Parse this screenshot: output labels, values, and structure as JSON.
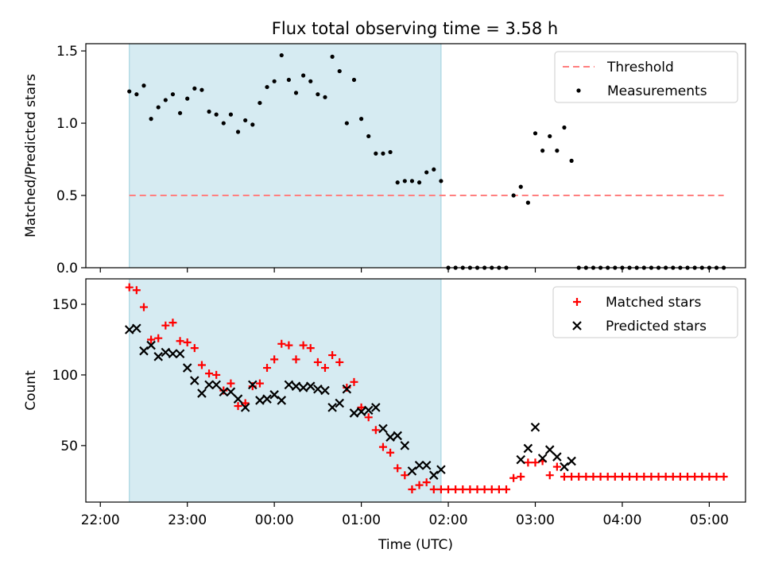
{
  "title": "Flux total observing time = 3.58 h",
  "colors": {
    "shade": "#add8e6",
    "threshold": "#ff7f7f",
    "matched": "#ff0000",
    "predicted": "#000000",
    "measurement": "#000000"
  },
  "chart_data": [
    {
      "type": "scatter",
      "ylabel": "Matched/Predicted stars",
      "xlabel": "",
      "ylim": [
        0,
        1.55
      ],
      "yticks": [
        0,
        0.5,
        1.0,
        1.5
      ],
      "ytick_labels": [
        "0.0",
        "0.5",
        "1.0",
        "1.5"
      ],
      "xlim": [
        "21:50",
        "05:25"
      ],
      "shaded_span": [
        "22:20",
        "01:55"
      ],
      "threshold": {
        "label": "Threshold",
        "value": 0.5,
        "x_range": [
          "22:20",
          "05:10"
        ]
      },
      "legend": {
        "position": "upper right",
        "entries": [
          "Threshold",
          "Measurements"
        ]
      },
      "series": [
        {
          "name": "Measurements",
          "marker": "dot",
          "x": [
            "22:20",
            "22:25",
            "22:30",
            "22:35",
            "22:40",
            "22:45",
            "22:50",
            "22:55",
            "23:00",
            "23:05",
            "23:10",
            "23:15",
            "23:20",
            "23:25",
            "23:30",
            "23:35",
            "23:40",
            "23:45",
            "23:50",
            "23:55",
            "00:00",
            "00:05",
            "00:10",
            "00:15",
            "00:20",
            "00:25",
            "00:30",
            "00:35",
            "00:40",
            "00:45",
            "00:50",
            "00:55",
            "01:00",
            "01:05",
            "01:10",
            "01:15",
            "01:20",
            "01:25",
            "01:30",
            "01:35",
            "01:40",
            "01:45",
            "01:50",
            "01:55",
            "02:00",
            "02:05",
            "02:10",
            "02:15",
            "02:20",
            "02:25",
            "02:30",
            "02:35",
            "02:40",
            "02:45",
            "02:50",
            "02:55",
            "03:00",
            "03:05",
            "03:10",
            "03:15",
            "03:20",
            "03:25",
            "03:30",
            "03:35",
            "03:40",
            "03:45",
            "03:50",
            "03:55",
            "04:00",
            "04:05",
            "04:10",
            "04:15",
            "04:20",
            "04:25",
            "04:30",
            "04:35",
            "04:40",
            "04:45",
            "04:50",
            "04:55",
            "05:00",
            "05:05",
            "05:10"
          ],
          "y": [
            1.22,
            1.2,
            1.26,
            1.03,
            1.11,
            1.16,
            1.2,
            1.07,
            1.17,
            1.24,
            1.23,
            1.08,
            1.06,
            1.0,
            1.06,
            0.94,
            1.02,
            0.99,
            1.14,
            1.25,
            1.29,
            1.47,
            1.3,
            1.21,
            1.33,
            1.29,
            1.2,
            1.18,
            1.46,
            1.36,
            1.0,
            1.3,
            1.03,
            0.91,
            0.79,
            0.79,
            0.8,
            0.59,
            0.6,
            0.6,
            0.59,
            0.66,
            0.68,
            0.6,
            0,
            0,
            0,
            0,
            0,
            0,
            0,
            0,
            0,
            0.5,
            0.56,
            0.45,
            0.93,
            0.81,
            0.91,
            0.81,
            0.97,
            0.74,
            0,
            0,
            0,
            0,
            0,
            0,
            0,
            0,
            0,
            0,
            0,
            0,
            0,
            0,
            0,
            0,
            0,
            0,
            0,
            0,
            0
          ]
        }
      ]
    },
    {
      "type": "scatter",
      "ylabel": "Count",
      "xlabel": "Time (UTC)",
      "ylim": [
        10,
        168
      ],
      "yticks": [
        50,
        100,
        150
      ],
      "ytick_labels": [
        "50",
        "100",
        "150"
      ],
      "xlim": [
        "21:50",
        "05:25"
      ],
      "xticks": [
        "22:00",
        "23:00",
        "00:00",
        "01:00",
        "02:00",
        "03:00",
        "04:00",
        "05:00"
      ],
      "xtick_labels": [
        "22:00",
        "23:00",
        "00:00",
        "01:00",
        "02:00",
        "03:00",
        "04:00",
        "05:00"
      ],
      "shaded_span": [
        "22:20",
        "01:55"
      ],
      "legend": {
        "position": "upper right",
        "entries": [
          "Matched stars",
          "Predicted stars"
        ]
      },
      "series": [
        {
          "name": "Matched stars",
          "marker": "plus",
          "x": [
            "22:20",
            "22:25",
            "22:30",
            "22:35",
            "22:40",
            "22:45",
            "22:50",
            "22:55",
            "23:00",
            "23:05",
            "23:10",
            "23:15",
            "23:20",
            "23:25",
            "23:30",
            "23:35",
            "23:40",
            "23:45",
            "23:50",
            "23:55",
            "00:00",
            "00:05",
            "00:10",
            "00:15",
            "00:20",
            "00:25",
            "00:30",
            "00:35",
            "00:40",
            "00:45",
            "00:50",
            "00:55",
            "01:00",
            "01:05",
            "01:10",
            "01:15",
            "01:20",
            "01:25",
            "01:30",
            "01:35",
            "01:40",
            "01:45",
            "01:50",
            "01:55",
            "02:00",
            "02:05",
            "02:10",
            "02:15",
            "02:20",
            "02:25",
            "02:30",
            "02:35",
            "02:40",
            "02:45",
            "02:50",
            "02:55",
            "03:00",
            "03:05",
            "03:10",
            "03:15",
            "03:20",
            "03:25",
            "03:30",
            "03:35",
            "03:40",
            "03:45",
            "03:50",
            "03:55",
            "04:00",
            "04:05",
            "04:10",
            "04:15",
            "04:20",
            "04:25",
            "04:30",
            "04:35",
            "04:40",
            "04:45",
            "04:50",
            "04:55",
            "05:00",
            "05:05",
            "05:10"
          ],
          "y": [
            162,
            160,
            148,
            125,
            126,
            135,
            137,
            124,
            123,
            119,
            107,
            101,
            100,
            89,
            94,
            78,
            80,
            92,
            94,
            105,
            111,
            122,
            121,
            111,
            121,
            119,
            109,
            105,
            114,
            109,
            91,
            95,
            77,
            70,
            61,
            49,
            45,
            34,
            29,
            19,
            22,
            24,
            19,
            19,
            19,
            19,
            19,
            19,
            19,
            19,
            19,
            19,
            19,
            27,
            28,
            38,
            38,
            39,
            29,
            35,
            28,
            28,
            28,
            28,
            28,
            28,
            28,
            28,
            28,
            28,
            28,
            28,
            28,
            28,
            28,
            28,
            28,
            28,
            28,
            28,
            28,
            28,
            28
          ]
        },
        {
          "name": "Predicted stars",
          "marker": "x",
          "x": [
            "22:20",
            "22:25",
            "22:30",
            "22:35",
            "22:40",
            "22:45",
            "22:50",
            "22:55",
            "23:00",
            "23:05",
            "23:10",
            "23:15",
            "23:20",
            "23:25",
            "23:30",
            "23:35",
            "23:40",
            "23:45",
            "23:50",
            "23:55",
            "00:00",
            "00:05",
            "00:10",
            "00:15",
            "00:20",
            "00:25",
            "00:30",
            "00:35",
            "00:40",
            "00:45",
            "00:50",
            "00:55",
            "01:00",
            "01:05",
            "01:10",
            "01:15",
            "01:20",
            "01:25",
            "01:30",
            "01:35",
            "01:40",
            "01:45",
            "01:50",
            "01:55",
            "02:50",
            "02:55",
            "03:00",
            "03:05",
            "03:10",
            "03:15",
            "03:20",
            "03:25"
          ],
          "y": [
            132,
            133,
            117,
            121,
            113,
            116,
            115,
            115,
            105,
            96,
            87,
            93,
            93,
            88,
            88,
            83,
            77,
            93,
            82,
            83,
            86,
            82,
            93,
            92,
            91,
            92,
            90,
            89,
            77,
            80,
            90,
            73,
            74,
            75,
            77,
            62,
            56,
            57,
            50,
            32,
            36,
            36,
            29,
            33,
            40,
            48,
            63,
            41,
            47,
            42,
            35,
            39
          ]
        }
      ]
    }
  ]
}
